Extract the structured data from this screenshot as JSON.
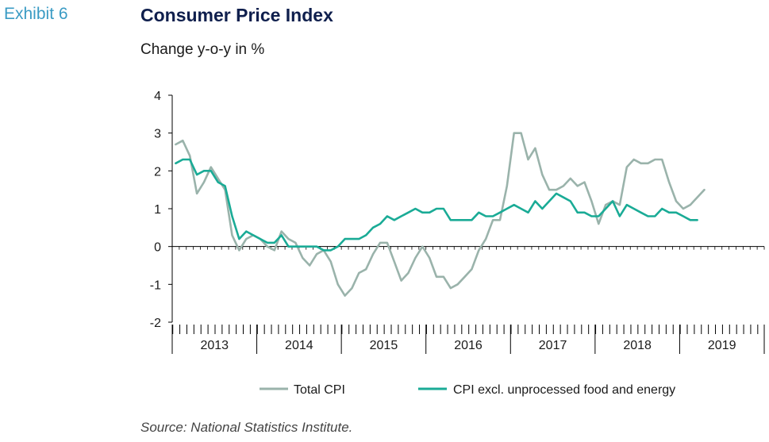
{
  "exhibit_label": "Exhibit 6",
  "source": "Source: National Statistics Institute.",
  "colors": {
    "total": "#9ab3ab",
    "core": "#1aab96",
    "title": "#0f1f4d",
    "exhibit": "#3a9bc4"
  },
  "chart_data": {
    "type": "line",
    "title": "Consumer Price Index",
    "subtitle": "Change y-o-y in %",
    "ylim": [
      -2,
      4
    ],
    "yticks": [
      -2,
      -1,
      0,
      1,
      2,
      3,
      4
    ],
    "x_start": "2013-01",
    "x_end": "2019-12",
    "year_labels": [
      "2013",
      "2014",
      "2015",
      "2016",
      "2017",
      "2018",
      "2019"
    ],
    "legend_position": "bottom",
    "grid": false,
    "series": [
      {
        "name": "Total CPI",
        "color": "#9ab3ab",
        "values": [
          2.7,
          2.8,
          2.4,
          1.4,
          1.7,
          2.1,
          1.8,
          1.5,
          0.3,
          -0.1,
          0.2,
          0.3,
          0.2,
          0.0,
          -0.1,
          0.4,
          0.2,
          0.1,
          -0.3,
          -0.5,
          -0.2,
          -0.1,
          -0.4,
          -1.0,
          -1.3,
          -1.1,
          -0.7,
          -0.6,
          -0.2,
          0.1,
          0.1,
          -0.4,
          -0.9,
          -0.7,
          -0.3,
          0.0,
          -0.3,
          -0.8,
          -0.8,
          -1.1,
          -1.0,
          -0.8,
          -0.6,
          -0.1,
          0.2,
          0.7,
          0.7,
          1.6,
          3.0,
          3.0,
          2.3,
          2.6,
          1.9,
          1.5,
          1.5,
          1.6,
          1.8,
          1.6,
          1.7,
          1.2,
          0.6,
          1.1,
          1.2,
          1.1,
          2.1,
          2.3,
          2.2,
          2.2,
          2.3,
          2.3,
          1.7,
          1.2,
          1.0,
          1.1,
          1.3,
          1.5
        ]
      },
      {
        "name": "CPI excl. unprocessed food and energy",
        "color": "#1aab96",
        "values": [
          2.2,
          2.3,
          2.3,
          1.9,
          2.0,
          2.0,
          1.7,
          1.6,
          0.8,
          0.2,
          0.4,
          0.3,
          0.2,
          0.1,
          0.1,
          0.3,
          0.0,
          0.0,
          0.0,
          0.0,
          0.0,
          -0.1,
          -0.1,
          0.0,
          0.2,
          0.2,
          0.2,
          0.3,
          0.5,
          0.6,
          0.8,
          0.7,
          0.8,
          0.9,
          1.0,
          0.9,
          0.9,
          1.0,
          1.0,
          0.7,
          0.7,
          0.7,
          0.7,
          0.9,
          0.8,
          0.8,
          0.9,
          1.0,
          1.1,
          1.0,
          0.9,
          1.2,
          1.0,
          1.2,
          1.4,
          1.3,
          1.2,
          0.9,
          0.9,
          0.8,
          0.8,
          1.0,
          1.2,
          0.8,
          1.1,
          1.0,
          0.9,
          0.8,
          0.8,
          1.0,
          0.9,
          0.9,
          0.8,
          0.7,
          0.7
        ]
      }
    ]
  }
}
